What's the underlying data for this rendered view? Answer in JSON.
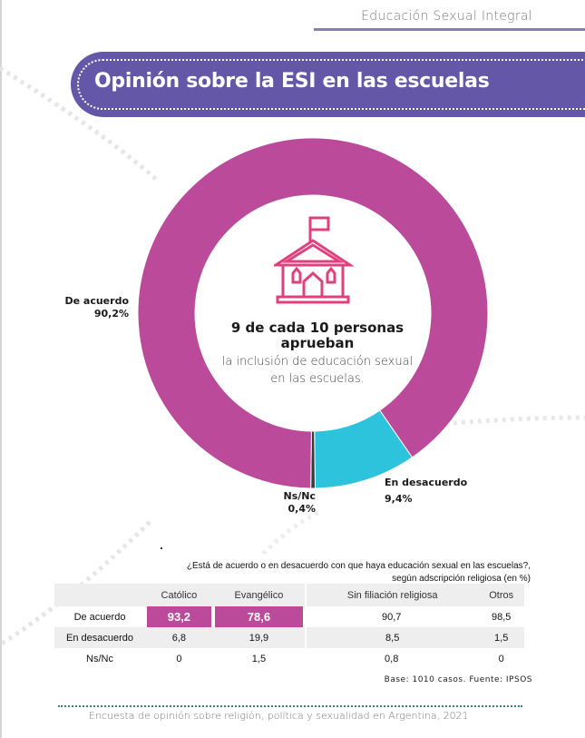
{
  "header": {
    "section_label": "Educación Sexual Integral"
  },
  "title": "Opinión sobre la ESI en las escuelas",
  "center": {
    "icon": "school-house-icon",
    "headline": "9 de cada 10 personas aprueban",
    "subtext": "la inclusión de educación sexual en las escuelas."
  },
  "chart_data": [
    {
      "type": "pie",
      "variant": "donut",
      "title": "Opinión sobre la ESI en las escuelas",
      "categories": [
        "De acuerdo",
        "En desacuerdo",
        "Ns/Nc"
      ],
      "values": [
        90.2,
        9.4,
        0.4
      ],
      "value_labels": [
        "90,2%",
        "9,4%",
        "0,4%"
      ],
      "colors": [
        "#bb4a9b",
        "#2ec3dc",
        "#3a3a3a"
      ],
      "labels": [
        {
          "name": "De acuerdo",
          "value": "90,2%"
        },
        {
          "name": "En desacuerdo",
          "value": "9,4%"
        },
        {
          "name": "Ns/Nc",
          "value": "0,4%"
        }
      ]
    },
    {
      "type": "table",
      "title": "¿Está de acuerdo o en desacuerdo con que haya educación sexual en las escuelas?, según adscripción religiosa (en %)",
      "columns": [
        "Católico",
        "Evangélico",
        "Sin filiación religiosa",
        "Otros"
      ],
      "rows": [
        {
          "label": "De acuerdo",
          "values": [
            "93,2",
            "78,6",
            "90,7",
            "98,5"
          ],
          "highlighted": [
            true,
            true,
            false,
            false
          ]
        },
        {
          "label": "En desacuerdo",
          "values": [
            "6,8",
            "19,9",
            "8,5",
            "1,5"
          ]
        },
        {
          "label": "Ns/Nc",
          "values": [
            "0",
            "1,5",
            "0,8",
            "0"
          ]
        }
      ]
    }
  ],
  "table": {
    "question_line1": "¿Está de acuerdo o en desacuerdo con que haya educación sexual en las escuelas?,",
    "question_line2": "según adscripción religiosa (en %)",
    "source": "Base: 1010 casos. Fuente: IPSOS"
  },
  "footer": {
    "text": "Encuesta de opinión sobre religión, política y sexualidad en Argentina, 2021"
  },
  "colors": {
    "purple_banner": "#6457a7",
    "magenta": "#bb4a9b",
    "cyan": "#2ec3dc",
    "house_pink": "#e0417e",
    "footer_rule": "#3d7c84"
  }
}
